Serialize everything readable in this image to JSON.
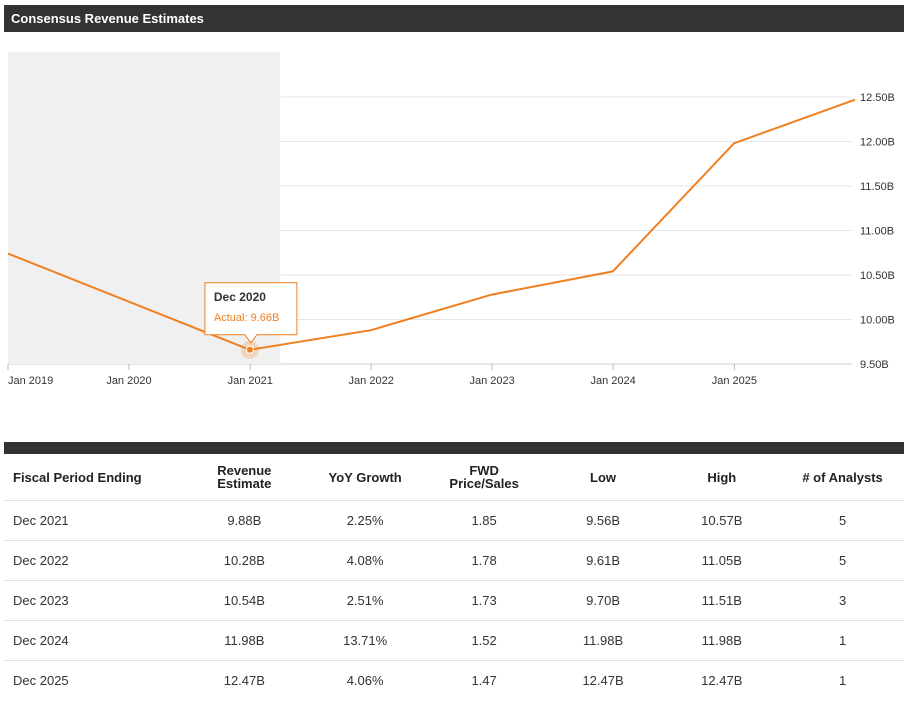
{
  "header": {
    "title": "Consensus Revenue Estimates"
  },
  "chart_data": {
    "type": "line",
    "title": "Consensus Revenue Estimates",
    "x_ticks": [
      "Jan 2019",
      "Jan 2020",
      "Jan 2021",
      "Jan 2022",
      "Jan 2023",
      "Jan 2024",
      "Jan 2025"
    ],
    "y_ticks": [
      "9.50B",
      "10.00B",
      "10.50B",
      "11.00B",
      "11.50B",
      "12.00B",
      "12.50B"
    ],
    "ylim": [
      9.5,
      12.5
    ],
    "xlim": [
      "2019-01-01",
      "2025-12-31"
    ],
    "series": [
      {
        "name": "Revenue",
        "color": "#f07f1f",
        "points": [
          {
            "x": "2019-01-01",
            "y": 10.74
          },
          {
            "x": "2020-12-31",
            "y": 9.66
          },
          {
            "x": "2021-12-31",
            "y": 9.88
          },
          {
            "x": "2022-12-31",
            "y": 10.28
          },
          {
            "x": "2023-12-31",
            "y": 10.54
          },
          {
            "x": "2024-12-31",
            "y": 11.98
          },
          {
            "x": "2025-12-31",
            "y": 12.47
          }
        ]
      }
    ],
    "actual_region": {
      "from": "2019-01-01",
      "to": "2021-04-01"
    },
    "tooltip": {
      "title": "Dec 2020",
      "label": "Actual: 9.66B",
      "x": "2020-12-31",
      "y": 9.66
    },
    "grid": true,
    "y_axis_position": "right"
  },
  "table": {
    "headers": [
      [
        "Fiscal Period Ending"
      ],
      [
        "Revenue",
        "Estimate"
      ],
      [
        "YoY Growth"
      ],
      [
        "FWD",
        "Price/Sales"
      ],
      [
        "Low"
      ],
      [
        "High"
      ],
      [
        "# of Analysts"
      ]
    ],
    "rows": [
      [
        "Dec 2021",
        "9.88B",
        "2.25%",
        "1.85",
        "9.56B",
        "10.57B",
        "5"
      ],
      [
        "Dec 2022",
        "10.28B",
        "4.08%",
        "1.78",
        "9.61B",
        "11.05B",
        "5"
      ],
      [
        "Dec 2023",
        "10.54B",
        "2.51%",
        "1.73",
        "9.70B",
        "11.51B",
        "3"
      ],
      [
        "Dec 2024",
        "11.98B",
        "13.71%",
        "1.52",
        "11.98B",
        "11.98B",
        "1"
      ],
      [
        "Dec 2025",
        "12.47B",
        "4.06%",
        "1.47",
        "12.47B",
        "12.47B",
        "1"
      ]
    ]
  }
}
